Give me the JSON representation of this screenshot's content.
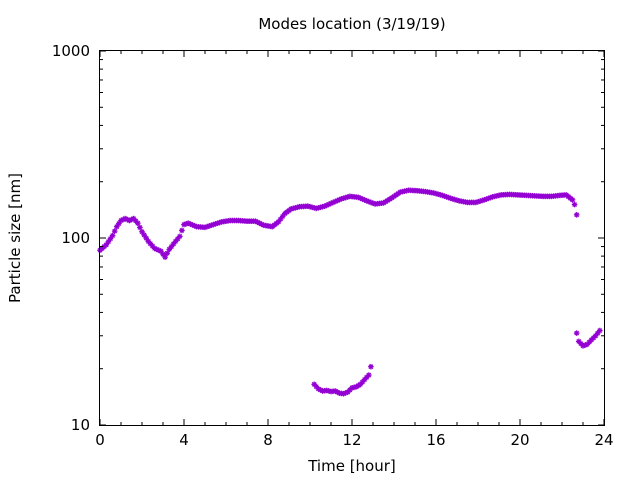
{
  "chart_data": {
    "type": "scatter",
    "title": "Modes location (3/19/19)",
    "xlabel": "Time [hour]",
    "ylabel": "Particle size [nm]",
    "xlim": [
      0,
      24
    ],
    "ylim": [
      10,
      1000
    ],
    "y_scale": "log",
    "grid": false,
    "legend": "none",
    "x_ticks": [
      0,
      4,
      8,
      12,
      16,
      20,
      24
    ],
    "x_tick_labels": [
      "0",
      "4",
      "8",
      "12",
      "16",
      "20",
      "24"
    ],
    "y_ticks": [
      10,
      100,
      1000
    ],
    "y_tick_labels": [
      "10",
      "100",
      "1000"
    ],
    "marker_color": "#9400d3",
    "series": [
      {
        "values_description": "primary mode",
        "points": [
          [
            0.0,
            86
          ],
          [
            0.3,
            92
          ],
          [
            0.6,
            103
          ],
          [
            0.8,
            115
          ],
          [
            1.0,
            124
          ],
          [
            1.2,
            127
          ],
          [
            1.4,
            124
          ],
          [
            1.6,
            127
          ],
          [
            1.8,
            120
          ],
          [
            2.0,
            108
          ],
          [
            2.3,
            96
          ],
          [
            2.6,
            88
          ],
          [
            2.9,
            85
          ],
          [
            3.1,
            79
          ],
          [
            3.3,
            87
          ],
          [
            3.6,
            96
          ],
          [
            3.8,
            102
          ],
          [
            4.0,
            118
          ],
          [
            4.2,
            120
          ],
          [
            4.6,
            115
          ],
          [
            5.0,
            114
          ],
          [
            5.4,
            118
          ],
          [
            5.8,
            122
          ],
          [
            6.2,
            124
          ],
          [
            6.6,
            124
          ],
          [
            7.0,
            123
          ],
          [
            7.4,
            123
          ],
          [
            7.8,
            117
          ],
          [
            8.2,
            115
          ],
          [
            8.5,
            122
          ],
          [
            8.8,
            135
          ],
          [
            9.1,
            143
          ],
          [
            9.5,
            147
          ],
          [
            9.9,
            148
          ],
          [
            10.3,
            144
          ],
          [
            10.7,
            148
          ],
          [
            11.1,
            155
          ],
          [
            11.5,
            162
          ],
          [
            11.9,
            167
          ],
          [
            12.3,
            165
          ],
          [
            12.7,
            158
          ],
          [
            13.1,
            152
          ],
          [
            13.5,
            154
          ],
          [
            13.9,
            164
          ],
          [
            14.3,
            176
          ],
          [
            14.7,
            180
          ],
          [
            15.1,
            179
          ],
          [
            15.5,
            177
          ],
          [
            15.9,
            174
          ],
          [
            16.3,
            169
          ],
          [
            16.7,
            163
          ],
          [
            17.1,
            158
          ],
          [
            17.5,
            155
          ],
          [
            17.9,
            155
          ],
          [
            18.3,
            160
          ],
          [
            18.7,
            166
          ],
          [
            19.1,
            170
          ],
          [
            19.5,
            171
          ],
          [
            19.9,
            170
          ],
          [
            20.3,
            169
          ],
          [
            20.7,
            168
          ],
          [
            21.1,
            167
          ],
          [
            21.5,
            167
          ],
          [
            21.9,
            169
          ],
          [
            22.2,
            170
          ],
          [
            22.5,
            160
          ],
          [
            22.6,
            151
          ],
          [
            22.7,
            133
          ]
        ]
      },
      {
        "values_description": "small mode",
        "points": [
          [
            10.2,
            16.5
          ],
          [
            10.4,
            15.6
          ],
          [
            10.6,
            15.2
          ],
          [
            10.8,
            15.3
          ],
          [
            11.0,
            15.1
          ],
          [
            11.2,
            15.2
          ],
          [
            11.4,
            14.8
          ],
          [
            11.6,
            14.7
          ],
          [
            11.8,
            15.0
          ],
          [
            12.0,
            15.8
          ],
          [
            12.2,
            16.0
          ],
          [
            12.4,
            16.5
          ],
          [
            12.6,
            17.5
          ],
          [
            12.8,
            18.5
          ],
          [
            12.9,
            20.5
          ]
        ]
      },
      {
        "values_description": "late mode",
        "points": [
          [
            22.7,
            31
          ],
          [
            22.8,
            28
          ],
          [
            23.0,
            26.5
          ],
          [
            23.2,
            27
          ],
          [
            23.4,
            28.5
          ],
          [
            23.6,
            30
          ],
          [
            23.8,
            32
          ]
        ]
      }
    ]
  }
}
